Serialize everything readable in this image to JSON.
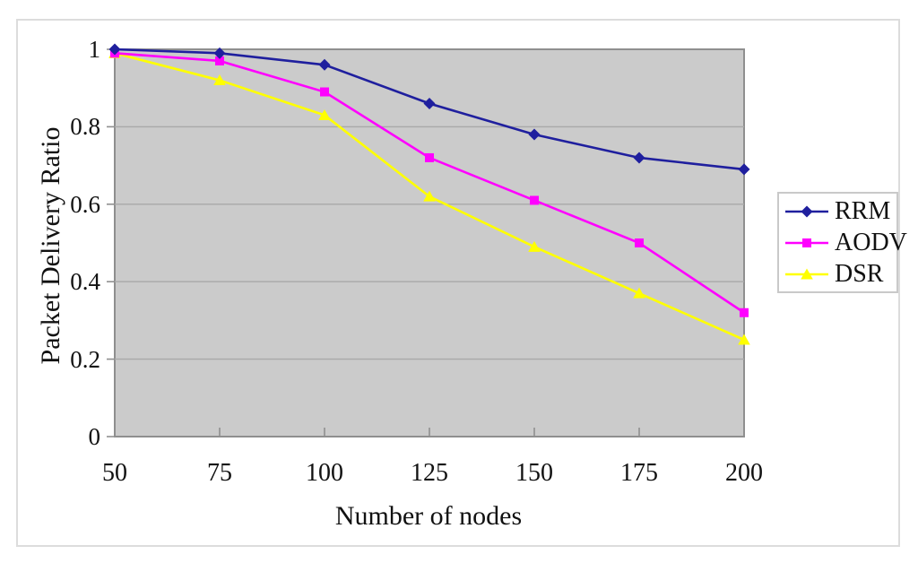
{
  "chart_data": {
    "type": "line",
    "title": "",
    "xlabel": "Number of nodes",
    "ylabel": "Packet Delivery Ratio",
    "x": [
      50,
      75,
      100,
      125,
      150,
      175,
      200
    ],
    "xticks": [
      "50",
      "75",
      "100",
      "125",
      "150",
      "175",
      "200"
    ],
    "yticks": [
      "0",
      "0.2",
      "0.4",
      "0.6",
      "0.8",
      "1"
    ],
    "ylim": [
      0,
      1
    ],
    "ytick_step": 0.2,
    "grid": true,
    "legend_position": "right",
    "series": [
      {
        "name": "RRM",
        "marker": "diamond",
        "color": "#1f1f9e",
        "values": [
          1.0,
          0.99,
          0.96,
          0.86,
          0.78,
          0.72,
          0.69
        ]
      },
      {
        "name": "AODV",
        "marker": "square",
        "color": "#ff00ff",
        "values": [
          0.99,
          0.97,
          0.89,
          0.72,
          0.61,
          0.5,
          0.32
        ]
      },
      {
        "name": "DSR",
        "marker": "triangle",
        "color": "#ffff00",
        "values": [
          0.99,
          0.92,
          0.83,
          0.62,
          0.49,
          0.37,
          0.25
        ]
      }
    ],
    "colors": {
      "plot_bg": "#cbcbcb",
      "gridline": "#a9a9a9",
      "axis": "#8f8f8f",
      "text": "#111111"
    }
  }
}
